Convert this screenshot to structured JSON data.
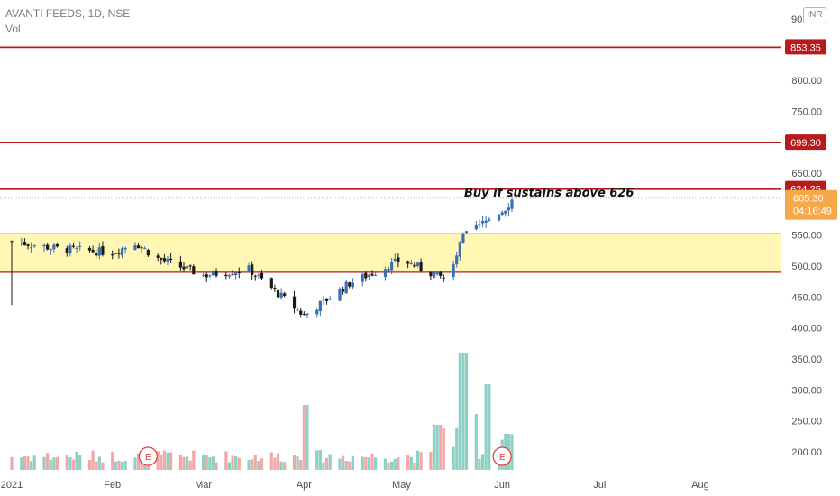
{
  "header": {
    "symbol_line": "AVANTI FEEDS, 1D, NSE",
    "volume_label": "Vol",
    "currency_button": "INR"
  },
  "annotation": {
    "text": "Buy if sustains above 626"
  },
  "colors": {
    "up": "#3a6fb5",
    "down": "#1a1a1a",
    "level_line": "#b71c1c",
    "zone_fill": "#fff7b3",
    "zone_border": "#b71c1c",
    "vol_up": "#8fd0c4",
    "vol_down": "#f4a7a7",
    "price_label": "#f7a94a",
    "earnings_marker": "#e53935"
  },
  "price_axis": {
    "ticks": [
      "200.00",
      "250.00",
      "300.00",
      "350.00",
      "400.00",
      "450.00",
      "500.00",
      "550.00",
      "650.00",
      "750.00",
      "800.00"
    ],
    "top_label": "90"
  },
  "time_axis": {
    "labels": [
      "2021",
      "Feb",
      "Mar",
      "Apr",
      "May",
      "Jun",
      "Jul",
      "Aug"
    ]
  },
  "levels": [
    {
      "price": 853.35,
      "label": "853.35"
    },
    {
      "price": 699.3,
      "label": "699.30"
    },
    {
      "price": 624.25,
      "label": "624.25"
    }
  ],
  "zone": {
    "upper": 552,
    "lower": 490
  },
  "last_price": {
    "value": "605.30",
    "countdown": "04:16:49"
  },
  "earnings": {
    "marker": "E"
  },
  "chart_data": {
    "type": "candlestick",
    "title": "AVANTI FEEDS, 1D, NSE",
    "x_range": [
      "2021-01-01",
      "2021-08-31"
    ],
    "ylim": [
      180,
      900
    ],
    "ohlc_keypoints": [
      {
        "x": "2021-01-01",
        "close": 540,
        "high": 545,
        "low": 437
      },
      {
        "x": "2021-01-15",
        "close": 528
      },
      {
        "x": "2021-02-01",
        "close": 522
      },
      {
        "x": "2021-02-08",
        "close": 538
      },
      {
        "x": "2021-02-15",
        "close": 512
      },
      {
        "x": "2021-03-01",
        "close": 485
      },
      {
        "x": "2021-03-15",
        "close": 495
      },
      {
        "x": "2021-04-01",
        "close": 420
      },
      {
        "x": "2021-04-15",
        "close": 472
      },
      {
        "x": "2021-05-01",
        "close": 510
      },
      {
        "x": "2021-05-15",
        "close": 478
      },
      {
        "x": "2021-05-20",
        "close": 547
      },
      {
        "x": "2021-06-01",
        "close": 590
      },
      {
        "x": "2021-06-04",
        "close": 605.3
      }
    ],
    "volume_relative_peaks": [
      {
        "x": "2021-04-01",
        "volume": "high"
      },
      {
        "x": "2021-05-12",
        "volume": "high"
      },
      {
        "x": "2021-05-20",
        "volume": "very high"
      },
      {
        "x": "2021-05-28",
        "volume": "high"
      }
    ],
    "horizontal_levels": [
      853.35,
      699.3,
      624.25
    ],
    "zone": [
      490,
      552
    ]
  }
}
